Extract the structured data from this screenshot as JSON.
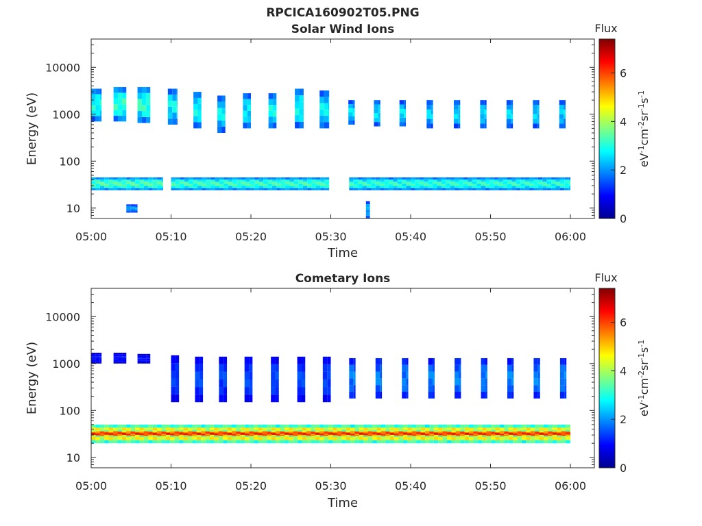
{
  "figure_title": "RPCICA160902T05.PNG",
  "colormap": "jet",
  "chart_data": [
    {
      "type": "heatmap",
      "title": "Solar Wind Ions",
      "xlabel": "Time",
      "ylabel": "Energy (eV)",
      "x_ticks": [
        "05:00",
        "05:10",
        "05:20",
        "05:30",
        "05:40",
        "05:50",
        "06:00"
      ],
      "x_range_minutes": [
        0,
        63
      ],
      "y_scale": "log",
      "y_ticks": [
        "10",
        "100",
        "1000",
        "10000"
      ],
      "y_tick_values": [
        10,
        100,
        1000,
        10000
      ],
      "y_range": [
        6,
        40000
      ],
      "colorbar": {
        "title": "Flux",
        "label": "eV^-1 cm^-2 sr^-1 s^-1",
        "ticks": [
          "0",
          "2",
          "4",
          "6"
        ],
        "range": [
          0,
          7.4
        ]
      },
      "bands": [
        {
          "t0": 0,
          "t1": 1.3,
          "e0": 700,
          "e1": 3500,
          "v": 2.8
        },
        {
          "t0": 2.8,
          "t1": 4.4,
          "e0": 700,
          "e1": 3800,
          "v": 3.0
        },
        {
          "t0": 5.8,
          "t1": 7.4,
          "e0": 650,
          "e1": 3800,
          "v": 3.0
        },
        {
          "t0": 9.6,
          "t1": 10.8,
          "e0": 600,
          "e1": 3500,
          "v": 2.7
        },
        {
          "t0": 12.8,
          "t1": 13.8,
          "e0": 500,
          "e1": 3000,
          "v": 2.7
        },
        {
          "t0": 15.8,
          "t1": 16.8,
          "e0": 400,
          "e1": 2500,
          "v": 2.6
        },
        {
          "t0": 19,
          "t1": 20,
          "e0": 500,
          "e1": 2800,
          "v": 2.6
        },
        {
          "t0": 22.2,
          "t1": 23.2,
          "e0": 500,
          "e1": 2800,
          "v": 2.7
        },
        {
          "t0": 25.5,
          "t1": 26.6,
          "e0": 500,
          "e1": 3500,
          "v": 2.7
        },
        {
          "t0": 28.6,
          "t1": 29.8,
          "e0": 500,
          "e1": 3200,
          "v": 2.6
        },
        {
          "t0": 32.2,
          "t1": 33.0,
          "e0": 600,
          "e1": 2000,
          "v": 2.5
        },
        {
          "t0": 35.4,
          "t1": 36.2,
          "e0": 550,
          "e1": 2000,
          "v": 2.5
        },
        {
          "t0": 38.6,
          "t1": 39.4,
          "e0": 550,
          "e1": 2000,
          "v": 2.5
        },
        {
          "t0": 42.0,
          "t1": 42.8,
          "e0": 500,
          "e1": 2000,
          "v": 2.4
        },
        {
          "t0": 45.4,
          "t1": 46.2,
          "e0": 500,
          "e1": 2000,
          "v": 2.4
        },
        {
          "t0": 48.7,
          "t1": 49.5,
          "e0": 500,
          "e1": 2000,
          "v": 2.4
        },
        {
          "t0": 52.0,
          "t1": 52.8,
          "e0": 500,
          "e1": 2000,
          "v": 2.4
        },
        {
          "t0": 55.3,
          "t1": 56.1,
          "e0": 500,
          "e1": 2000,
          "v": 2.4
        },
        {
          "t0": 58.6,
          "t1": 59.4,
          "e0": 500,
          "e1": 2000,
          "v": 2.4
        },
        {
          "t0": 0,
          "t1": 9,
          "e0": 24,
          "e1": 45,
          "v": 3.2
        },
        {
          "t0": 10,
          "t1": 29.8,
          "e0": 24,
          "e1": 45,
          "v": 3.1
        },
        {
          "t0": 32.3,
          "t1": 60,
          "e0": 24,
          "e1": 45,
          "v": 3.0
        },
        {
          "t0": 4.4,
          "t1": 5.8,
          "e0": 8,
          "e1": 12,
          "v": 2.0
        },
        {
          "t0": 34.4,
          "t1": 34.9,
          "e0": 6,
          "e1": 14,
          "v": 2.2
        }
      ]
    },
    {
      "type": "heatmap",
      "title": "Cometary Ions",
      "xlabel": "Time",
      "ylabel": "Energy (eV)",
      "x_ticks": [
        "05:00",
        "05:10",
        "05:20",
        "05:30",
        "05:40",
        "05:50",
        "06:00"
      ],
      "x_range_minutes": [
        0,
        63
      ],
      "y_scale": "log",
      "y_ticks": [
        "10",
        "100",
        "1000",
        "10000"
      ],
      "y_tick_values": [
        10,
        100,
        1000,
        10000
      ],
      "y_range": [
        6,
        40000
      ],
      "colorbar": {
        "title": "Flux",
        "label": "eV^-1 cm^-2 sr^-1 s^-1",
        "ticks": [
          "0",
          "2",
          "4",
          "6"
        ],
        "range": [
          0,
          7.4
        ]
      },
      "bands": [
        {
          "t0": 0,
          "t1": 1.3,
          "e0": 1000,
          "e1": 1700,
          "v": 1.0
        },
        {
          "t0": 2.8,
          "t1": 4.4,
          "e0": 1000,
          "e1": 1700,
          "v": 1.0
        },
        {
          "t0": 5.8,
          "t1": 7.4,
          "e0": 1000,
          "e1": 1600,
          "v": 1.0
        },
        {
          "t0": 10,
          "t1": 11,
          "e0": 150,
          "e1": 1500,
          "v": 1.3
        },
        {
          "t0": 13,
          "t1": 14,
          "e0": 150,
          "e1": 1400,
          "v": 1.4
        },
        {
          "t0": 16,
          "t1": 17,
          "e0": 150,
          "e1": 1400,
          "v": 1.4
        },
        {
          "t0": 19.2,
          "t1": 20.2,
          "e0": 150,
          "e1": 1400,
          "v": 1.4
        },
        {
          "t0": 22.5,
          "t1": 23.5,
          "e0": 150,
          "e1": 1400,
          "v": 1.4
        },
        {
          "t0": 25.8,
          "t1": 26.8,
          "e0": 150,
          "e1": 1400,
          "v": 1.4
        },
        {
          "t0": 29,
          "t1": 30,
          "e0": 150,
          "e1": 1400,
          "v": 1.4
        },
        {
          "t0": 32.3,
          "t1": 33.1,
          "e0": 180,
          "e1": 1300,
          "v": 1.8
        },
        {
          "t0": 35.6,
          "t1": 36.4,
          "e0": 180,
          "e1": 1300,
          "v": 1.8
        },
        {
          "t0": 38.9,
          "t1": 39.7,
          "e0": 180,
          "e1": 1300,
          "v": 1.8
        },
        {
          "t0": 42.2,
          "t1": 43.0,
          "e0": 180,
          "e1": 1300,
          "v": 1.8
        },
        {
          "t0": 45.5,
          "t1": 46.3,
          "e0": 180,
          "e1": 1300,
          "v": 1.8
        },
        {
          "t0": 48.8,
          "t1": 49.6,
          "e0": 180,
          "e1": 1300,
          "v": 1.8
        },
        {
          "t0": 52.1,
          "t1": 52.9,
          "e0": 180,
          "e1": 1300,
          "v": 1.8
        },
        {
          "t0": 55.4,
          "t1": 56.2,
          "e0": 180,
          "e1": 1300,
          "v": 1.8
        },
        {
          "t0": 58.7,
          "t1": 59.5,
          "e0": 180,
          "e1": 1300,
          "v": 1.8
        },
        {
          "t0": 0,
          "t1": 60,
          "e0": 20,
          "e1": 50,
          "v": 5.0
        },
        {
          "t0": 0,
          "t1": 60,
          "e0": 27,
          "e1": 38,
          "v": 6.0
        }
      ]
    }
  ]
}
